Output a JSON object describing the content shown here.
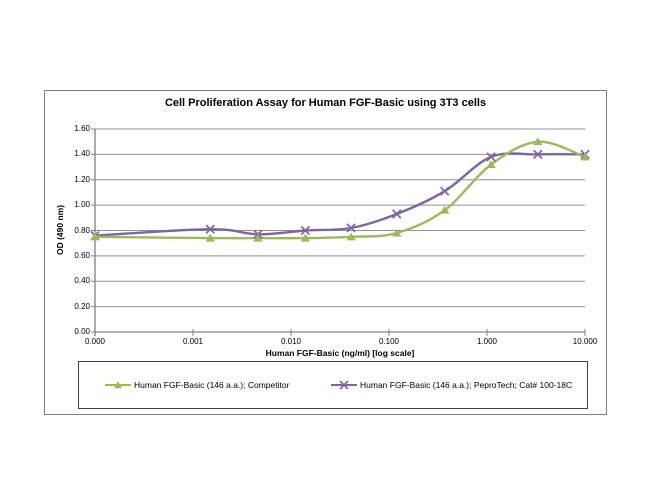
{
  "chart_data": {
    "type": "line",
    "title": "Cell Proliferation Assay for Human FGF-Basic using 3T3 cells",
    "xlabel": "Human FGF-Basic (ng/ml) [log scale]",
    "ylabel": "OD (490 nm)",
    "x_scale": "log",
    "ylim": [
      0,
      1.6
    ],
    "grid": "horizontal",
    "legend_position": "bottom-boxed",
    "x_tick_labels": [
      "0.000",
      "0.001",
      "0.010",
      "0.100",
      "1.000",
      "10.000"
    ],
    "y_tick_labels": [
      "0.00",
      "0.20",
      "0.40",
      "0.60",
      "0.80",
      "1.00",
      "1.20",
      "1.40",
      "1.60"
    ],
    "x": [
      0,
      0.0015,
      0.0046,
      0.014,
      0.041,
      0.12,
      0.37,
      1.1,
      3.3,
      10
    ],
    "series": [
      {
        "name": "Human FGF-Basic (146 a.a.); Competitor",
        "color": "#9BBB59",
        "marker": "triangle",
        "values": [
          0.75,
          0.74,
          0.74,
          0.74,
          0.75,
          0.78,
          0.96,
          1.32,
          1.5,
          1.38
        ]
      },
      {
        "name": "Human FGF-Basic (146 a.a.); PeproTech; Cat# 100-18C",
        "color": "#8064A2",
        "marker": "x",
        "values": [
          0.76,
          0.81,
          0.77,
          0.8,
          0.82,
          0.93,
          1.11,
          1.38,
          1.4,
          1.4
        ]
      }
    ],
    "colors": {
      "gridline": "#909090",
      "axis": "#808080",
      "frame_border": "#808080",
      "legend_border": "#404040",
      "text": "#000000"
    }
  }
}
